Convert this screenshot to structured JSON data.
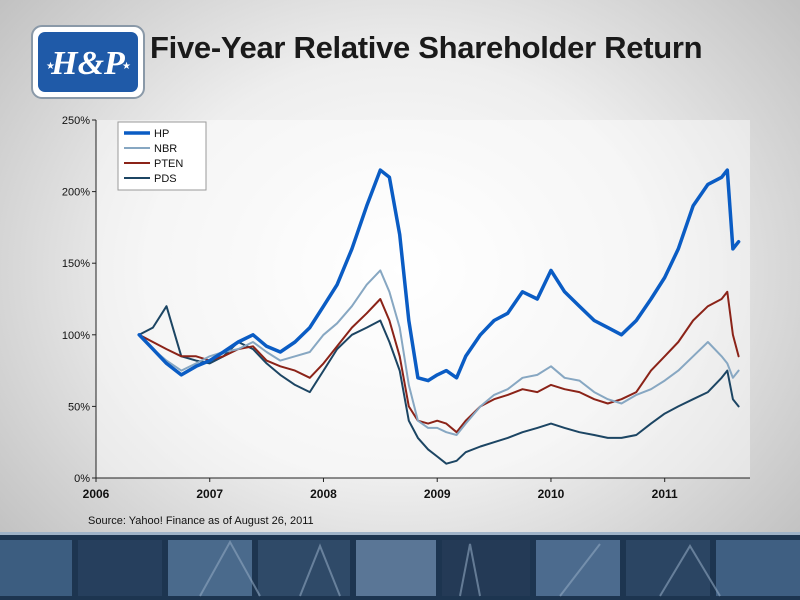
{
  "page": {
    "title": "Five-Year Relative Shareholder Return",
    "source": "Source: Yahoo! Finance as of August 26, 2011",
    "logo_text": "H&P"
  },
  "chart_data": {
    "type": "line",
    "title": "Five-Year Relative Shareholder Return",
    "xlabel": "",
    "ylabel": "",
    "xlim": [
      2006.0,
      2011.75
    ],
    "ylim": [
      0,
      250
    ],
    "x_ticks": [
      "2006",
      "2007",
      "2008",
      "2009",
      "2010",
      "2011"
    ],
    "y_ticks": [
      "0%",
      "50%",
      "100%",
      "150%",
      "200%",
      "250%"
    ],
    "grid": false,
    "legend_position": "top-left",
    "x": [
      2006.38,
      2006.5,
      2006.62,
      2006.75,
      2006.88,
      2007.0,
      2007.12,
      2007.25,
      2007.38,
      2007.5,
      2007.62,
      2007.75,
      2007.88,
      2008.0,
      2008.12,
      2008.25,
      2008.38,
      2008.5,
      2008.58,
      2008.67,
      2008.75,
      2008.83,
      2008.92,
      2009.0,
      2009.08,
      2009.17,
      2009.25,
      2009.38,
      2009.5,
      2009.62,
      2009.75,
      2009.88,
      2010.0,
      2010.12,
      2010.25,
      2010.38,
      2010.5,
      2010.62,
      2010.75,
      2010.88,
      2011.0,
      2011.12,
      2011.25,
      2011.38,
      2011.5,
      2011.55,
      2011.6,
      2011.65
    ],
    "series": [
      {
        "name": "HP",
        "color": "#0a5cc4",
        "width": 3.5,
        "values": [
          100,
          90,
          80,
          72,
          78,
          82,
          88,
          95,
          100,
          92,
          88,
          95,
          105,
          120,
          135,
          160,
          190,
          215,
          210,
          170,
          110,
          70,
          68,
          72,
          75,
          70,
          85,
          100,
          110,
          115,
          130,
          125,
          145,
          130,
          120,
          110,
          105,
          100,
          110,
          125,
          140,
          160,
          190,
          205,
          210,
          215,
          160,
          165
        ]
      },
      {
        "name": "NBR",
        "color": "#87a7c2",
        "width": 2,
        "values": [
          100,
          90,
          82,
          75,
          80,
          85,
          88,
          90,
          95,
          88,
          82,
          85,
          88,
          100,
          108,
          120,
          135,
          145,
          130,
          105,
          65,
          40,
          35,
          35,
          32,
          30,
          38,
          50,
          58,
          62,
          70,
          72,
          78,
          70,
          68,
          60,
          55,
          52,
          58,
          62,
          68,
          75,
          85,
          95,
          85,
          80,
          70,
          75
        ]
      },
      {
        "name": "PTEN",
        "color": "#8b2318",
        "width": 2,
        "values": [
          100,
          95,
          90,
          85,
          85,
          82,
          85,
          90,
          92,
          82,
          78,
          75,
          70,
          80,
          92,
          105,
          115,
          125,
          110,
          85,
          50,
          40,
          38,
          40,
          38,
          32,
          40,
          50,
          55,
          58,
          62,
          60,
          65,
          62,
          60,
          55,
          52,
          55,
          60,
          75,
          85,
          95,
          110,
          120,
          125,
          130,
          100,
          85
        ]
      },
      {
        "name": "PDS",
        "color": "#1c4563",
        "width": 2,
        "values": [
          100,
          105,
          120,
          85,
          82,
          80,
          85,
          95,
          90,
          80,
          72,
          65,
          60,
          75,
          90,
          100,
          105,
          110,
          95,
          75,
          40,
          28,
          20,
          15,
          10,
          12,
          18,
          22,
          25,
          28,
          32,
          35,
          38,
          35,
          32,
          30,
          28,
          28,
          30,
          38,
          45,
          50,
          55,
          60,
          70,
          75,
          55,
          50
        ]
      }
    ]
  }
}
